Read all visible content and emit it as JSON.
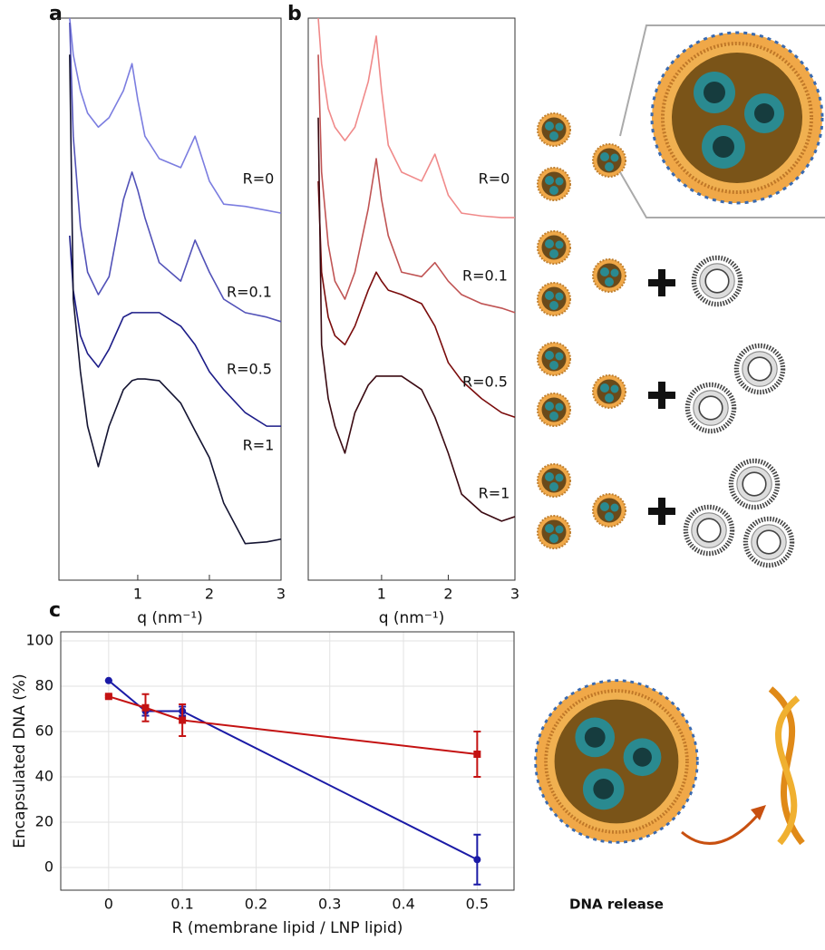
{
  "chart_data": [
    {
      "type": "line",
      "panel": "a",
      "xlabel": "q (nm⁻¹)",
      "xlim": [
        -0.1,
        3
      ],
      "xticks": [
        1,
        2,
        3
      ],
      "ylim": [
        0,
        100
      ],
      "x": [
        0.05,
        0.1,
        0.2,
        0.3,
        0.45,
        0.6,
        0.8,
        0.92,
        1.0,
        1.1,
        1.3,
        1.6,
        1.8,
        2.0,
        2.2,
        2.5,
        2.8,
        3.0
      ],
      "series": [
        {
          "name": "R=0",
          "color": "#7b7de0",
          "values": [
            100,
            93.5,
            87.1,
            83.1,
            80.6,
            82.3,
            87.1,
            91.9,
            85.5,
            79.0,
            75.0,
            73.4,
            79.0,
            71.0,
            66.9,
            66.5,
            65.8,
            65.3
          ]
        },
        {
          "name": "R=0.1",
          "color": "#5252b8",
          "values": [
            99.2,
            79.0,
            62.9,
            54.8,
            50.8,
            54.0,
            67.7,
            72.6,
            69.4,
            64.5,
            56.5,
            53.2,
            60.5,
            54.8,
            50.0,
            47.6,
            46.8,
            46.0
          ]
        },
        {
          "name": "R=0.5",
          "color": "#1c1c88",
          "values": [
            61.3,
            51.6,
            43.5,
            40.3,
            37.9,
            41.1,
            46.8,
            47.6,
            47.6,
            47.6,
            47.6,
            45.2,
            41.9,
            37.1,
            33.9,
            29.8,
            27.4,
            27.4
          ]
        },
        {
          "name": "R=1",
          "color": "#141432",
          "values": [
            93.5,
            50.0,
            37.1,
            27.4,
            20.2,
            27.4,
            33.9,
            35.5,
            35.8,
            35.8,
            35.5,
            31.5,
            26.6,
            21.8,
            13.7,
            6.5,
            6.8,
            7.3
          ]
        }
      ]
    },
    {
      "type": "line",
      "panel": "b",
      "xlabel": "q (nm⁻¹)",
      "xlim": [
        -0.1,
        3
      ],
      "xticks": [
        1,
        2,
        3
      ],
      "ylim": [
        0,
        100
      ],
      "x": [
        0.05,
        0.1,
        0.2,
        0.3,
        0.45,
        0.6,
        0.8,
        0.92,
        1.0,
        1.1,
        1.3,
        1.6,
        1.8,
        2.0,
        2.2,
        2.5,
        2.8,
        3.0
      ],
      "series": [
        {
          "name": "R=0",
          "color": "#f08a8a",
          "values": [
            100,
            91.9,
            83.9,
            80.6,
            78.2,
            80.6,
            88.7,
            96.8,
            87.1,
            77.4,
            72.6,
            71.0,
            75.8,
            68.5,
            65.3,
            64.8,
            64.5,
            64.5
          ]
        },
        {
          "name": "R=0.1",
          "color": "#c05454",
          "values": [
            93.5,
            72.6,
            59.7,
            53.2,
            50.0,
            54.8,
            66.1,
            75.0,
            67.7,
            61.3,
            54.8,
            54.0,
            56.5,
            53.2,
            50.8,
            49.2,
            48.4,
            47.6
          ]
        },
        {
          "name": "R=0.5",
          "color": "#7a0c0c",
          "values": [
            71.0,
            54.8,
            46.8,
            43.5,
            41.9,
            45.2,
            51.6,
            54.8,
            53.2,
            51.6,
            50.8,
            49.2,
            45.2,
            38.7,
            35.5,
            32.3,
            29.8,
            29.0
          ]
        },
        {
          "name": "R=1",
          "color": "#3a0a12",
          "values": [
            82.3,
            41.9,
            32.3,
            27.4,
            22.6,
            29.8,
            34.7,
            36.3,
            36.3,
            36.3,
            36.3,
            33.9,
            29.0,
            22.6,
            15.3,
            12.1,
            10.5,
            11.3
          ]
        }
      ]
    },
    {
      "type": "errorline",
      "panel": "c",
      "xlabel": "R (membrane lipid / LNP lipid)",
      "ylabel": "Encapsulated DNA (%)",
      "xlim": [
        -0.065,
        0.55
      ],
      "xticks": [
        0,
        0.1,
        0.2,
        0.3,
        0.4,
        0.5
      ],
      "ylim": [
        -10,
        104
      ],
      "yticks": [
        0,
        20,
        40,
        60,
        80,
        100
      ],
      "grid": true,
      "x": [
        0,
        0.05,
        0.1,
        0.5
      ],
      "series": [
        {
          "color": "#1a1aa6",
          "marker": "circle",
          "values": [
            82.5,
            69,
            69,
            3.5
          ],
          "errors": [
            0,
            2,
            2,
            11
          ]
        },
        {
          "color": "#c41212",
          "marker": "square",
          "values": [
            75.5,
            70.5,
            65,
            50
          ],
          "errors": [
            0.5,
            6,
            7,
            10
          ]
        }
      ]
    }
  ],
  "illustration": {
    "release_label": "DNA release"
  }
}
